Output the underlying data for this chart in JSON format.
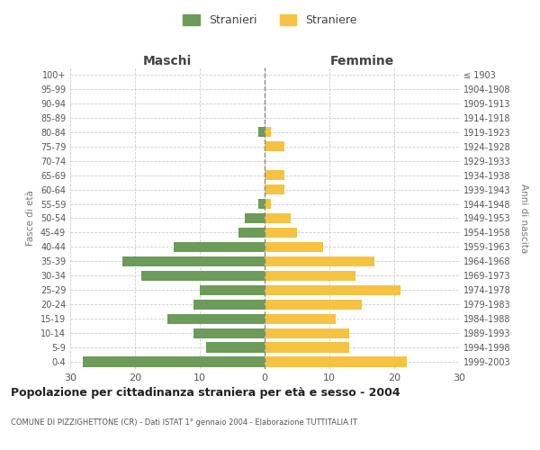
{
  "age_groups": [
    "100+",
    "95-99",
    "90-94",
    "85-89",
    "80-84",
    "75-79",
    "70-74",
    "65-69",
    "60-64",
    "55-59",
    "50-54",
    "45-49",
    "40-44",
    "35-39",
    "30-34",
    "25-29",
    "20-24",
    "15-19",
    "10-14",
    "5-9",
    "0-4"
  ],
  "birth_years": [
    "≤ 1903",
    "1904-1908",
    "1909-1913",
    "1914-1918",
    "1919-1923",
    "1924-1928",
    "1929-1933",
    "1934-1938",
    "1939-1943",
    "1944-1948",
    "1949-1953",
    "1954-1958",
    "1959-1963",
    "1964-1968",
    "1969-1973",
    "1974-1978",
    "1979-1983",
    "1984-1988",
    "1989-1993",
    "1994-1998",
    "1999-2003"
  ],
  "maschi": [
    0,
    0,
    0,
    0,
    1,
    0,
    0,
    0,
    0,
    1,
    3,
    4,
    14,
    22,
    19,
    10,
    11,
    15,
    11,
    9,
    28
  ],
  "femmine": [
    0,
    0,
    0,
    0,
    1,
    3,
    0,
    3,
    3,
    1,
    4,
    5,
    9,
    17,
    14,
    21,
    15,
    11,
    13,
    13,
    22
  ],
  "maschi_color": "#6d9b5a",
  "femmine_color": "#f5c242",
  "title": "Popolazione per cittadinanza straniera per età e sesso - 2004",
  "subtitle": "COMUNE DI PIZZIGHETTONE (CR) - Dati ISTAT 1° gennaio 2004 - Elaborazione TUTTITALIA.IT",
  "xlabel_left": "Maschi",
  "xlabel_right": "Femmine",
  "ylabel_left": "Fasce di età",
  "ylabel_right": "Anni di nascita",
  "legend_maschi": "Stranieri",
  "legend_femmine": "Straniere",
  "xlim": 30,
  "background_color": "#ffffff",
  "grid_color": "#cccccc"
}
